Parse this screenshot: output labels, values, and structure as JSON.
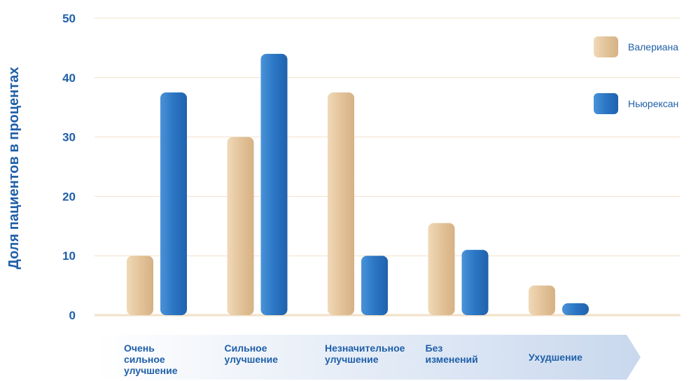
{
  "chart_data": {
    "type": "bar",
    "title": "",
    "xlabel": "",
    "ylabel": "Доля пациентов в процентах",
    "ylim": [
      0,
      50
    ],
    "yticks": [
      0,
      10,
      20,
      30,
      40,
      50
    ],
    "grid": true,
    "legend_position": "top-right",
    "categories": [
      [
        "Очень",
        "сильное",
        "улучшение"
      ],
      [
        "Сильное",
        "улучшение"
      ],
      [
        "Незначительное",
        "улучшение"
      ],
      [
        "Без",
        "изменений"
      ],
      [
        "Ухудшение"
      ]
    ],
    "series": [
      {
        "name": "Валериана",
        "color": "#e3c39a",
        "values": [
          10,
          30,
          37.5,
          15.5,
          5
        ]
      },
      {
        "name": "Ньюрексан",
        "color": "#2b76c4",
        "values": [
          37.5,
          44,
          10,
          11,
          2
        ]
      }
    ],
    "colors": {
      "text": "#1f5fa8",
      "grid": "#f2e1c9",
      "arrow_start": "#ffffff",
      "arrow_end": "#c9d8ee"
    }
  }
}
